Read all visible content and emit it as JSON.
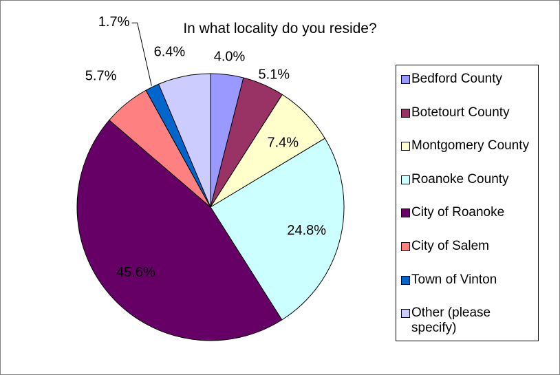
{
  "chart_data": {
    "type": "pie",
    "title": "In what locality do you reside?",
    "legend_position": "right",
    "slices": [
      {
        "label": "Bedford County",
        "value": 4.0,
        "display": "4.0%",
        "color": "#9999ff"
      },
      {
        "label": "Botetourt County",
        "value": 5.1,
        "display": "5.1%",
        "color": "#993366"
      },
      {
        "label": "Montgomery County",
        "value": 7.4,
        "display": "7.4%",
        "color": "#ffffcc"
      },
      {
        "label": "Roanoke County",
        "value": 24.8,
        "display": "24.8%",
        "color": "#ccffff"
      },
      {
        "label": "City of Roanoke",
        "value": 45.6,
        "display": "45.6%",
        "color": "#660066"
      },
      {
        "label": "City of Salem",
        "value": 5.7,
        "display": "5.7%",
        "color": "#ff8080"
      },
      {
        "label": "Town of Vinton",
        "value": 1.7,
        "display": "1.7%",
        "color": "#0066cc"
      },
      {
        "label": "Other (please specify)",
        "value": 6.4,
        "display": "6.4%",
        "color": "#ccccff"
      }
    ]
  }
}
